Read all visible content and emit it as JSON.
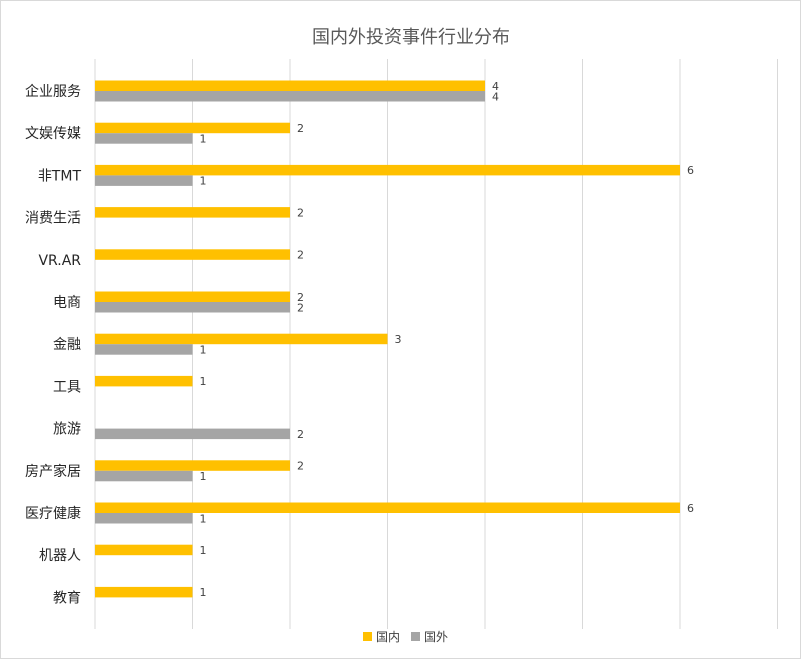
{
  "chart_data": {
    "type": "bar",
    "orientation": "horizontal",
    "title": "国内外投资事件行业分布",
    "categories": [
      "企业服务",
      "文娱传媒",
      "非TMT",
      "消费生活",
      "VR.AR",
      "电商",
      "金融",
      "工具",
      "旅游",
      "房产家居",
      "医疗健康",
      "机器人",
      "教育"
    ],
    "series": [
      {
        "name": "国内",
        "color": "#FFC000",
        "values": [
          4,
          2,
          6,
          2,
          2,
          2,
          3,
          1,
          null,
          2,
          6,
          1,
          1
        ]
      },
      {
        "name": "国外",
        "color": "#A5A5A5",
        "values": [
          4,
          1,
          1,
          null,
          null,
          2,
          1,
          null,
          2,
          1,
          1,
          null,
          null
        ]
      }
    ],
    "xlim": [
      0,
      7
    ],
    "grid": true,
    "legend": "bottom"
  }
}
